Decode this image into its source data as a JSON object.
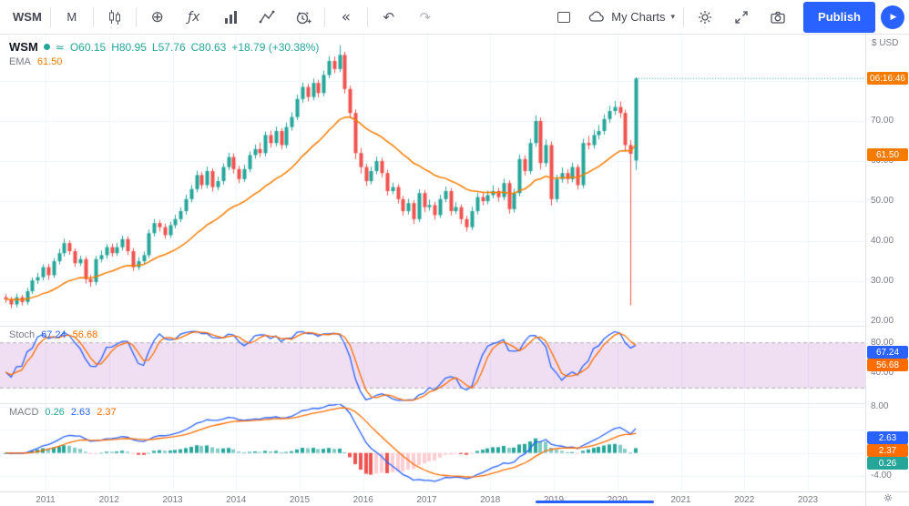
{
  "toolbar": {
    "symbol": "WSM",
    "interval": "M",
    "my_charts": "My Charts",
    "publish": "Publish"
  },
  "icons": {
    "compare": "⊕",
    "fx": "ƒx",
    "rewind": "«",
    "undo": "↶",
    "redo": "↷",
    "caret": "▾",
    "play": "▶",
    "wave": "≈"
  },
  "legend": {
    "symbol": "WSM",
    "o": "O60.15",
    "h": "H80.95",
    "l": "L57.76",
    "c": "C80.63",
    "change": "+18.79 (+30.38%)",
    "ema_label": "EMA",
    "ema_value": "61.50"
  },
  "panes": {
    "stoch": {
      "label": "Stoch",
      "k": "67.24",
      "d": "56.68"
    },
    "macd": {
      "label": "MACD",
      "hist": "0.26",
      "macd": "2.63",
      "signal": "2.37"
    }
  },
  "axis": {
    "currency": "$ USD",
    "price_labels": [
      "70.00",
      "60.00",
      "50.00",
      "40.00",
      "30.00",
      "20.00"
    ],
    "stoch_labels": [
      "80.00",
      "40.00"
    ],
    "macd_labels": [
      "8.00",
      "-4.00"
    ],
    "badges": [
      {
        "name": "countdown-badge",
        "text": "06:16:46",
        "color": "#f57c00",
        "pane": "main",
        "at": 80.63
      },
      {
        "name": "ema-badge",
        "text": "61.50",
        "color": "#f57c00",
        "pane": "main",
        "at": 61.5
      },
      {
        "name": "stoch-k-badge",
        "text": "67.24",
        "color": "#2962ff",
        "pane": "stoch",
        "at": 67.24
      },
      {
        "name": "stoch-d-badge",
        "text": "56.68",
        "color": "#ff6d00",
        "pane": "stoch",
        "at": 56.68
      },
      {
        "name": "macd-line-badge",
        "text": "2.63",
        "color": "#2962ff",
        "pane": "macd",
        "at": 2.63
      },
      {
        "name": "macd-signal-badge",
        "text": "2.37",
        "color": "#ff6d00",
        "pane": "macd",
        "at": 2.37
      },
      {
        "name": "macd-hist-badge",
        "text": "0.26",
        "color": "#26a69a",
        "pane": "macd",
        "at": 0.26
      }
    ]
  },
  "time_axis": {
    "years": [
      "2011",
      "2012",
      "2013",
      "2014",
      "2015",
      "2016",
      "2017",
      "2018",
      "2019",
      "2020",
      "2021",
      "2022",
      "2023"
    ]
  },
  "colors": {
    "up": "#26a69a",
    "down": "#ef5350",
    "ema": "#f57c00",
    "stoch_k": "#2962ff",
    "stoch_d": "#ff6d00",
    "stoch_band": "rgba(156,39,176,0.15)",
    "macd_line": "#2962ff",
    "macd_signal": "#ff6d00",
    "hist_up": "#26a69a",
    "hist_up_faded": "#80cbc4",
    "hist_dn": "#ef5350",
    "hist_dn_faded": "#ffcdd2",
    "accent": "#2962ff",
    "grid": "#f0f3fa"
  },
  "chart_data": {
    "type": "candlestick+indicators",
    "symbol": "WSM",
    "interval": "monthly",
    "time_range": "2010-05 to 2020-04",
    "last_candle": {
      "open": 60.15,
      "high": 80.95,
      "low": 57.76,
      "close": 80.63,
      "change": 18.79,
      "change_pct": 30.38
    },
    "countdown": "06:16:46",
    "overlays": [
      {
        "name": "EMA",
        "period": 24,
        "last": 61.5
      }
    ],
    "indicators": [
      {
        "name": "Stoch",
        "k_period": 14,
        "smooth": 3,
        "d_period": 3,
        "k_last": 67.24,
        "d_last": 56.68,
        "band": [
          20,
          80
        ]
      },
      {
        "name": "MACD",
        "fast": 12,
        "slow": 26,
        "signal": 9,
        "last": {
          "hist": 0.26,
          "macd": 2.63,
          "signal": 2.37
        }
      }
    ],
    "price_axis": {
      "min": 20,
      "max": 90,
      "gridlines": [
        20,
        30,
        40,
        50,
        60,
        70,
        80
      ]
    },
    "stoch_axis": {
      "min": 0,
      "max": 100,
      "gridlines": [
        40,
        80
      ]
    },
    "macd_axis": {
      "gridlines": [
        8,
        4,
        0,
        -4
      ]
    },
    "candles": [
      [
        26.0,
        26.8,
        24.6,
        25.5
      ],
      [
        25.5,
        26.1,
        23.2,
        24.2
      ],
      [
        24.2,
        26.9,
        23.5,
        26.0
      ],
      [
        26.0,
        26.6,
        23.9,
        24.8
      ],
      [
        24.8,
        28.3,
        24.1,
        27.5
      ],
      [
        27.5,
        30.9,
        26.8,
        30.2
      ],
      [
        30.2,
        32.1,
        29.3,
        31.0
      ],
      [
        31.0,
        34.2,
        30.2,
        33.5
      ],
      [
        33.5,
        34.3,
        30.4,
        31.5
      ],
      [
        31.5,
        35.8,
        30.8,
        35.0
      ],
      [
        35.0,
        38.1,
        34.2,
        37.0
      ],
      [
        37.0,
        40.6,
        36.2,
        39.5
      ],
      [
        39.5,
        40.2,
        36.6,
        37.5
      ],
      [
        37.5,
        38.2,
        33.6,
        34.5
      ],
      [
        34.5,
        36.4,
        33.8,
        35.5
      ],
      [
        35.5,
        36.1,
        29.4,
        30.5
      ],
      [
        30.5,
        31.6,
        28.6,
        29.8
      ],
      [
        29.8,
        36.3,
        29.0,
        35.5
      ],
      [
        35.5,
        37.7,
        34.7,
        36.5
      ],
      [
        36.5,
        39.3,
        35.6,
        38.5
      ],
      [
        38.5,
        39.4,
        36.1,
        37.0
      ],
      [
        37.0,
        39.6,
        36.3,
        38.5
      ],
      [
        38.5,
        41.4,
        37.7,
        40.5
      ],
      [
        40.5,
        41.2,
        36.5,
        37.5
      ],
      [
        37.5,
        38.3,
        32.6,
        33.5
      ],
      [
        33.5,
        36.0,
        32.8,
        35.0
      ],
      [
        35.0,
        37.4,
        34.1,
        36.5
      ],
      [
        36.5,
        42.9,
        35.8,
        42.0
      ],
      [
        42.0,
        45.6,
        41.2,
        44.5
      ],
      [
        44.5,
        45.3,
        42.4,
        43.5
      ],
      [
        43.5,
        44.4,
        40.6,
        41.5
      ],
      [
        41.5,
        44.9,
        40.8,
        44.0
      ],
      [
        44.0,
        46.6,
        43.2,
        45.5
      ],
      [
        45.5,
        48.4,
        44.7,
        47.5
      ],
      [
        47.5,
        51.6,
        46.6,
        50.5
      ],
      [
        50.5,
        54.0,
        49.7,
        53.0
      ],
      [
        53.0,
        57.6,
        52.2,
        56.5
      ],
      [
        56.5,
        57.3,
        53.0,
        54.0
      ],
      [
        54.0,
        58.6,
        53.2,
        57.5
      ],
      [
        57.5,
        58.2,
        52.4,
        53.5
      ],
      [
        53.5,
        56.1,
        52.7,
        55.0
      ],
      [
        55.0,
        59.4,
        54.1,
        58.5
      ],
      [
        58.5,
        62.1,
        57.7,
        61.0
      ],
      [
        61.0,
        61.9,
        56.9,
        58.0
      ],
      [
        58.0,
        58.8,
        54.5,
        55.5
      ],
      [
        55.5,
        59.1,
        54.8,
        58.0
      ],
      [
        58.0,
        62.4,
        57.2,
        61.5
      ],
      [
        61.5,
        64.1,
        60.6,
        63.0
      ],
      [
        63.0,
        64.6,
        61.0,
        62.0
      ],
      [
        62.0,
        67.4,
        61.2,
        66.5
      ],
      [
        66.5,
        67.6,
        63.4,
        64.5
      ],
      [
        64.5,
        68.6,
        63.7,
        67.5
      ],
      [
        67.5,
        68.2,
        62.9,
        64.0
      ],
      [
        64.0,
        69.6,
        63.2,
        68.5
      ],
      [
        68.5,
        72.2,
        67.6,
        71.0
      ],
      [
        71.0,
        76.6,
        70.2,
        75.5
      ],
      [
        75.5,
        79.6,
        74.6,
        78.5
      ],
      [
        78.5,
        79.3,
        74.9,
        76.0
      ],
      [
        76.0,
        80.6,
        75.2,
        79.5
      ],
      [
        79.5,
        80.3,
        75.9,
        77.0
      ],
      [
        77.0,
        82.6,
        76.2,
        81.5
      ],
      [
        81.5,
        86.2,
        80.7,
        85.0
      ],
      [
        85.0,
        86.1,
        81.9,
        83.0
      ],
      [
        83.0,
        88.9,
        82.2,
        86.5
      ],
      [
        86.5,
        87.3,
        76.9,
        78.0
      ],
      [
        78.0,
        78.8,
        70.7,
        72.0
      ],
      [
        72.0,
        72.9,
        60.5,
        62.0
      ],
      [
        62.0,
        63.3,
        56.9,
        58.5
      ],
      [
        58.5,
        59.3,
        53.8,
        55.0
      ],
      [
        55.0,
        58.6,
        54.2,
        57.5
      ],
      [
        57.5,
        61.1,
        56.7,
        60.0
      ],
      [
        60.0,
        60.8,
        55.9,
        57.0
      ],
      [
        57.0,
        57.8,
        51.4,
        52.5
      ],
      [
        52.5,
        54.6,
        51.7,
        53.5
      ],
      [
        53.5,
        54.2,
        49.4,
        50.5
      ],
      [
        50.5,
        51.3,
        46.4,
        47.5
      ],
      [
        47.5,
        50.6,
        46.7,
        49.5
      ],
      [
        49.5,
        50.2,
        44.3,
        45.5
      ],
      [
        45.5,
        53.0,
        44.8,
        52.0
      ],
      [
        52.0,
        52.8,
        47.3,
        48.5
      ],
      [
        48.5,
        50.4,
        47.6,
        49.0
      ],
      [
        49.0,
        49.8,
        45.4,
        46.5
      ],
      [
        46.5,
        51.6,
        45.8,
        50.5
      ],
      [
        50.5,
        53.6,
        49.7,
        52.5
      ],
      [
        52.5,
        53.2,
        46.4,
        47.5
      ],
      [
        47.5,
        49.7,
        46.8,
        48.5
      ],
      [
        48.5,
        49.2,
        44.3,
        45.5
      ],
      [
        45.5,
        46.3,
        42.4,
        43.5
      ],
      [
        43.5,
        48.6,
        42.8,
        47.5
      ],
      [
        47.5,
        52.1,
        46.7,
        51.0
      ],
      [
        51.0,
        52.3,
        49.0,
        50.0
      ],
      [
        50.0,
        52.6,
        49.2,
        51.5
      ],
      [
        51.5,
        54.0,
        50.7,
        52.5
      ],
      [
        52.5,
        53.3,
        49.9,
        51.0
      ],
      [
        51.0,
        55.6,
        50.2,
        54.5
      ],
      [
        54.5,
        55.2,
        46.9,
        48.0
      ],
      [
        48.0,
        53.1,
        47.2,
        52.0
      ],
      [
        52.0,
        61.6,
        51.2,
        60.5
      ],
      [
        60.5,
        61.4,
        56.4,
        57.5
      ],
      [
        57.5,
        65.6,
        56.7,
        64.5
      ],
      [
        64.5,
        71.4,
        63.6,
        70.0
      ],
      [
        70.0,
        70.9,
        57.9,
        59.5
      ],
      [
        59.5,
        65.4,
        58.6,
        64.0
      ],
      [
        64.0,
        64.9,
        48.9,
        50.5
      ],
      [
        50.5,
        56.6,
        49.7,
        55.5
      ],
      [
        55.5,
        58.4,
        54.6,
        57.0
      ],
      [
        57.0,
        58.0,
        54.4,
        55.5
      ],
      [
        55.5,
        59.6,
        54.7,
        58.5
      ],
      [
        58.5,
        59.2,
        52.9,
        54.0
      ],
      [
        54.0,
        65.6,
        53.2,
        64.5
      ],
      [
        64.5,
        66.3,
        62.9,
        64.0
      ],
      [
        64.0,
        67.8,
        63.1,
        66.5
      ],
      [
        66.5,
        69.0,
        65.5,
        67.5
      ],
      [
        67.5,
        71.7,
        66.6,
        70.5
      ],
      [
        70.5,
        73.8,
        69.6,
        72.5
      ],
      [
        72.5,
        75.0,
        71.6,
        73.5
      ],
      [
        73.5,
        74.9,
        70.8,
        72.0
      ],
      [
        72.0,
        72.8,
        62.5,
        64.0
      ],
      [
        64.0,
        65.2,
        24.0,
        61.84
      ],
      [
        60.15,
        80.95,
        57.76,
        80.63
      ]
    ]
  }
}
